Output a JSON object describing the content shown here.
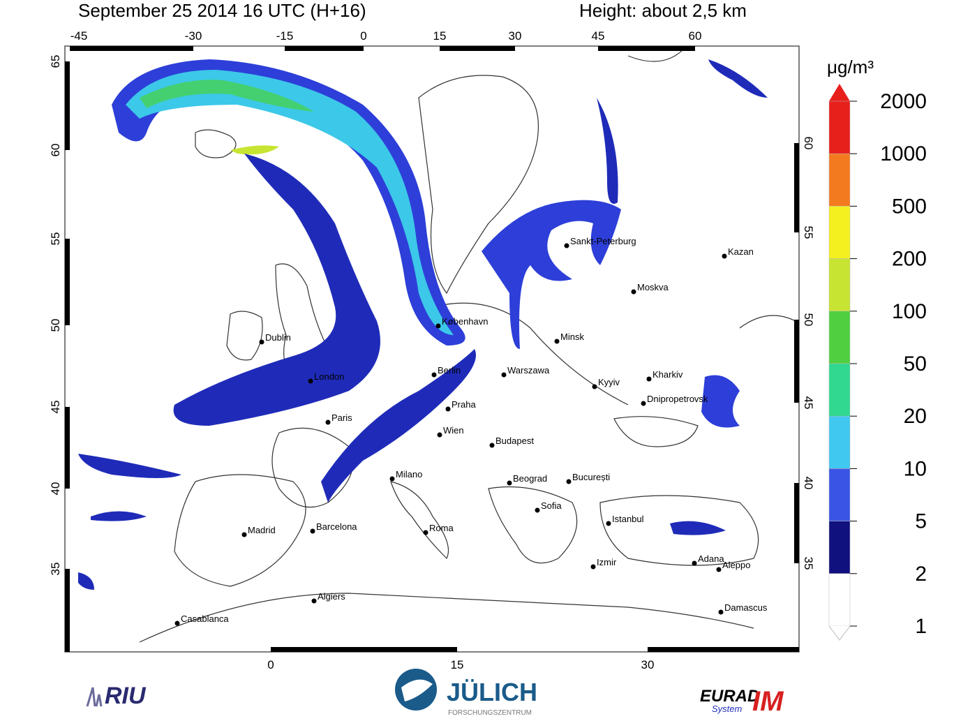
{
  "header": {
    "title": "September 25 2014 16 UTC (H+16)",
    "height": "Height: about 2,5 km"
  },
  "top_ticks": [
    -45,
    -30,
    -15,
    0,
    15,
    30,
    45,
    60
  ],
  "left_ticks": [
    65,
    60,
    55,
    50,
    45,
    40,
    35
  ],
  "right_ticks": [
    60,
    55,
    50,
    45,
    40,
    35
  ],
  "bottom_ticks": [
    0,
    15,
    30
  ],
  "cities": [
    "Sankt-Peterburg",
    "Kazan",
    "Moskva",
    "Minsk",
    "Warszawa",
    "Kyyiv",
    "Kharkiv",
    "Dnipropetrovsk",
    "Praha",
    "Wien",
    "Budapest",
    "București",
    "Beograd",
    "Sofia",
    "Istanbul",
    "Izmir",
    "Adana",
    "Aleppo",
    "Damascus",
    "Milano",
    "Roma",
    "Barcelona",
    "Madrid",
    "Algiers",
    "Casablanca",
    "Paris",
    "London",
    "Dublin",
    "Berlin",
    "København"
  ],
  "colorbar": {
    "unit": "μg/m³",
    "levels": [
      2000,
      1000,
      500,
      200,
      100,
      50,
      20,
      10,
      5,
      2,
      1
    ],
    "colors": [
      "#e8201c",
      "#f47a20",
      "#f4f020",
      "#c8e432",
      "#50d040",
      "#30d890",
      "#40c8f0",
      "#3a55e6",
      "#10107e",
      "#ffffff"
    ]
  },
  "logos": {
    "riu": "RIU",
    "julich": "JÜLICH",
    "julich_sub": "FORSCHUNGSZENTRUM",
    "eurad": "EURAD",
    "im": "IM",
    "system": "System"
  }
}
